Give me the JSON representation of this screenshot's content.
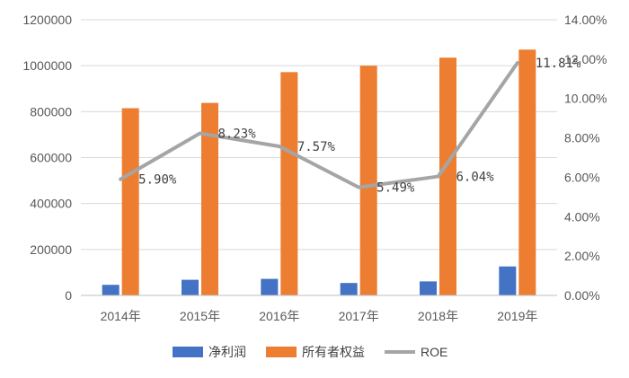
{
  "chart_data": {
    "type": "bar",
    "categories": [
      "2014年",
      "2015年",
      "2016年",
      "2017年",
      "2018年",
      "2019年"
    ],
    "series": [
      {
        "name": "净利润",
        "type": "bar",
        "axis": "left",
        "color": "#4472C4",
        "values": [
          46000,
          68000,
          72000,
          54000,
          61000,
          126000
        ]
      },
      {
        "name": "所有者权益",
        "type": "bar",
        "axis": "left",
        "color": "#ED7D31",
        "values": [
          815000,
          838000,
          972000,
          1000000,
          1035000,
          1070000
        ]
      },
      {
        "name": "ROE",
        "type": "line",
        "axis": "right",
        "color": "#A5A5A5",
        "values": [
          5.9,
          8.23,
          7.57,
          5.49,
          6.04,
          11.81
        ],
        "labels": [
          "5.90%",
          "8.23%",
          "7.57%",
          "5.49%",
          "6.04%",
          "11.81%"
        ]
      }
    ],
    "y_left": {
      "min": 0,
      "max": 1200000,
      "ticks": [
        "0",
        "200000",
        "400000",
        "600000",
        "800000",
        "1000000",
        "1200000"
      ]
    },
    "y_right": {
      "min": 0,
      "max": 14,
      "ticks": [
        "0.00%",
        "2.00%",
        "4.00%",
        "6.00%",
        "8.00%",
        "10.00%",
        "12.00%",
        "14.00%"
      ]
    },
    "grid": true,
    "legend": "bottom"
  }
}
